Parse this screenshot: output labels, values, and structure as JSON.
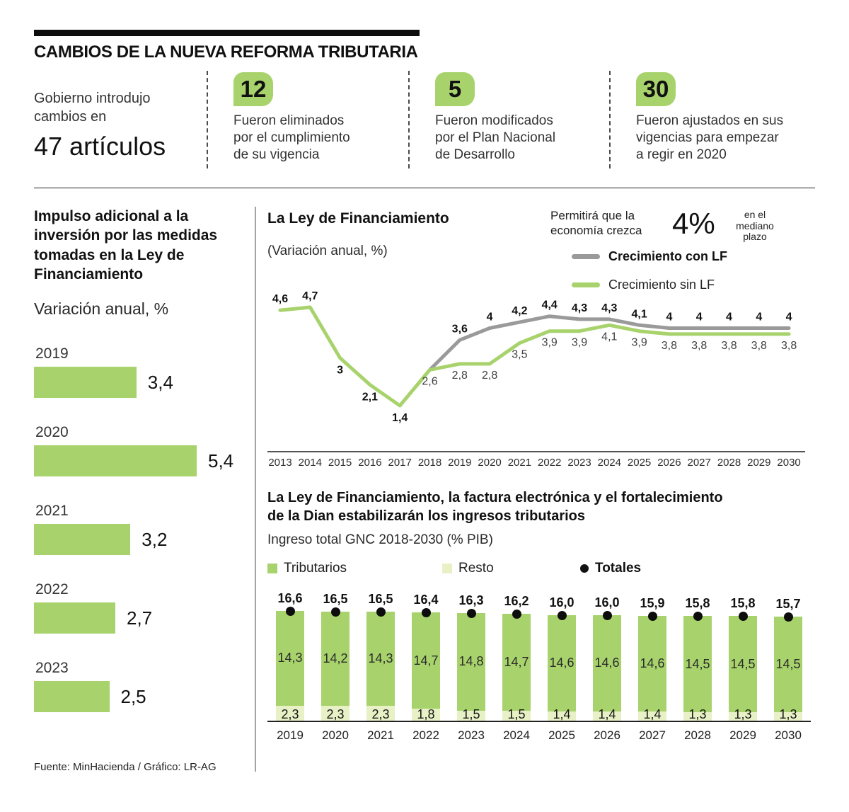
{
  "colors": {
    "green": "#a8d36c",
    "light_green": "#e8f1c6",
    "gray": "#9a9a9a",
    "black": "#0d0d0d"
  },
  "header": {
    "title": "CAMBIOS DE LA NUEVA REFORMA TRIBUTARIA",
    "intro_line1": "Gobierno introdujo",
    "intro_line2": "cambios en",
    "intro_big": "47 artículos",
    "stats": [
      {
        "number": "12",
        "lines": [
          "Fueron eliminados",
          "por el cumplimiento",
          "de su vigencia"
        ]
      },
      {
        "number": "5",
        "lines": [
          "Fueron modificados",
          "por el Plan Nacional",
          "de Desarrollo"
        ]
      },
      {
        "number": "30",
        "lines": [
          "Fueron ajustados en sus",
          "vigencias para empezar",
          "a regir en 2020"
        ]
      }
    ]
  },
  "footer": "Fuente: MinHacienda / Gráfico: LR-AG",
  "chart_data": [
    {
      "type": "bar",
      "orientation": "horizontal",
      "title": "Impulso adicional a la inversión por las medidas tomadas en la Ley de Financiamiento",
      "ylabel": "Variación anual, %",
      "categories": [
        "2019",
        "2020",
        "2021",
        "2022",
        "2023"
      ],
      "values": [
        3.4,
        5.4,
        3.2,
        2.7,
        2.5
      ],
      "labels": [
        "3,4",
        "5,4",
        "3,2",
        "2,7",
        "2,5"
      ],
      "xlim": [
        0,
        5.4
      ]
    },
    {
      "type": "line",
      "title": "La Ley de Financiamiento",
      "subtitle": "(Variación anual, %)",
      "annotation": {
        "lead": "Permitirá que la economía crezca",
        "big": "4%",
        "tail": "en el mediano plazo"
      },
      "x": [
        2013,
        2014,
        2015,
        2016,
        2017,
        2018,
        2019,
        2020,
        2021,
        2022,
        2023,
        2024,
        2025,
        2026,
        2027,
        2028,
        2029,
        2030
      ],
      "ylim": [
        1.0,
        5.0
      ],
      "legend_position": "top-right",
      "series": [
        {
          "name": "Crecimiento con LF",
          "color_key": "gray",
          "start_index": 5,
          "values": [
            2.6,
            3.6,
            4.0,
            4.2,
            4.4,
            4.3,
            4.3,
            4.1,
            4.0,
            4.0,
            4.0,
            4.0,
            4.0
          ],
          "labels": [
            "",
            "3,6",
            "4",
            "4,2",
            "4,4",
            "4,3",
            "4,3",
            "4,1",
            "4",
            "4",
            "4",
            "4",
            "4"
          ]
        },
        {
          "name": "Crecimiento sin LF",
          "color_key": "green",
          "start_index": 0,
          "values": [
            4.6,
            4.7,
            3.0,
            2.1,
            1.4,
            2.6,
            2.8,
            2.8,
            3.5,
            3.9,
            3.9,
            4.1,
            3.9,
            3.8,
            3.8,
            3.8,
            3.8,
            3.8
          ],
          "labels": [
            "4,6",
            "4,7",
            "3",
            "2,1",
            "1,4",
            "2,6",
            "2,8",
            "2,8",
            "3,5",
            "3,9",
            "3,9",
            "4,1",
            "3,9",
            "3,8",
            "3,8",
            "3,8",
            "3,8",
            "3,8"
          ]
        }
      ]
    },
    {
      "type": "bar",
      "subtype": "stacked",
      "title_line1": "La Ley de Financiamiento, la factura electrónica y el fortalecimiento",
      "title_line2": "de la Dian estabilizarán los ingresos tributarios",
      "subtitle": "Ingreso total GNC 2018-2030 (% PIB)",
      "legend": [
        "Tributarios",
        "Resto",
        "Totales"
      ],
      "categories": [
        "2019",
        "2020",
        "2021",
        "2022",
        "2023",
        "2024",
        "2025",
        "2026",
        "2027",
        "2028",
        "2029",
        "2030"
      ],
      "series": [
        {
          "name": "Tributarios",
          "color_key": "green",
          "values": [
            14.3,
            14.2,
            14.3,
            14.7,
            14.8,
            14.7,
            14.6,
            14.6,
            14.6,
            14.5,
            14.5,
            14.5
          ],
          "labels": [
            "14,3",
            "14,2",
            "14,3",
            "14,7",
            "14,8",
            "14,7",
            "14,6",
            "14,6",
            "14,6",
            "14,5",
            "14,5",
            "14,5"
          ]
        },
        {
          "name": "Resto",
          "color_key": "light_green",
          "values": [
            2.3,
            2.3,
            2.3,
            1.8,
            1.5,
            1.5,
            1.4,
            1.4,
            1.4,
            1.3,
            1.3,
            1.3
          ],
          "labels": [
            "2,3",
            "2,3",
            "2,3",
            "1,8",
            "1,5",
            "1,5",
            "1,4",
            "1,4",
            "1,4",
            "1,3",
            "1,3",
            "1,3"
          ]
        }
      ],
      "totals": [
        16.6,
        16.5,
        16.5,
        16.4,
        16.3,
        16.2,
        16.0,
        16.0,
        15.9,
        15.8,
        15.8,
        15.7
      ],
      "total_labels": [
        "16,6",
        "16,5",
        "16,5",
        "16,4",
        "16,3",
        "16,2",
        "16,0",
        "16,0",
        "15,9",
        "15,8",
        "15,8",
        "15,7"
      ]
    }
  ]
}
